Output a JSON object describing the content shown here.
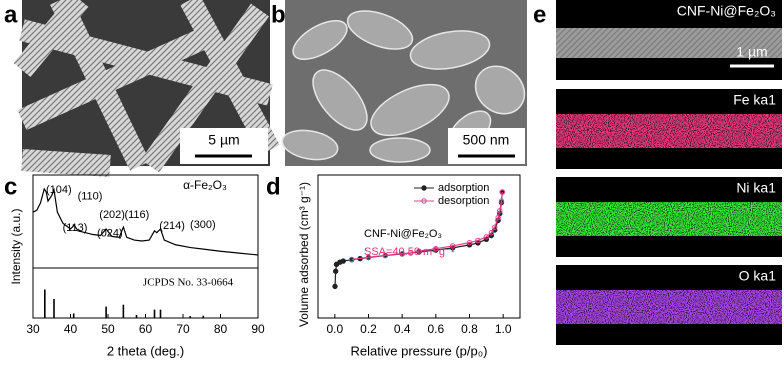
{
  "panels": {
    "a": {
      "letter": "a",
      "scale_bar": "5 µm"
    },
    "b": {
      "letter": "b",
      "scale_bar": "500 nm"
    },
    "c": {
      "letter": "c"
    },
    "d": {
      "letter": "d"
    },
    "e": {
      "letter": "e",
      "maps": [
        {
          "label": "CNF-Ni@Fe₂O₃",
          "scale_bar": "1 µm",
          "color": "#9a9a9a"
        },
        {
          "label": "Fe ka1",
          "color": "#f03c82"
        },
        {
          "label": "Ni ka1",
          "color": "#3cf03c"
        },
        {
          "label": "O ka1",
          "color": "#b048f0"
        }
      ]
    }
  },
  "chart_data": [
    {
      "type": "xrd",
      "xlabel": "2 theta (deg.)",
      "ylabel": "Intensity (a.u.)",
      "phase_label": "α-Fe₂O₃",
      "xlim": [
        30,
        90
      ],
      "xticks": [
        30,
        40,
        50,
        60,
        70,
        80,
        90
      ],
      "ylim": [
        0,
        100
      ],
      "color": "#000000",
      "x": [
        30,
        31,
        32,
        33,
        33.5,
        34,
        35,
        35.6,
        36.5,
        38,
        40,
        41,
        42,
        44,
        46,
        48,
        49.5,
        51,
        53,
        54.1,
        55,
        57,
        59,
        61,
        62.4,
        63,
        64,
        65,
        68,
        72,
        76,
        80,
        85,
        90
      ],
      "values": [
        60,
        62,
        70,
        85,
        82,
        72,
        78,
        84,
        60,
        48,
        42,
        46,
        40,
        38,
        36,
        35,
        42,
        34,
        33,
        44,
        33,
        30,
        29,
        30,
        40,
        38,
        42,
        30,
        25,
        22,
        20,
        18,
        16,
        14
      ],
      "annotations": [
        {
          "text": "(104)",
          "x": 36.9,
          "y": 84
        },
        {
          "text": "(110)",
          "x": 45.2,
          "y": 77
        },
        {
          "text": "(113)",
          "x": 41.2,
          "y": 43
        },
        {
          "text": "(202)",
          "x": 51.1,
          "y": 57
        },
        {
          "text": "(024)",
          "x": 50.5,
          "y": 37
        },
        {
          "text": "(116)",
          "x": 57.7,
          "y": 57
        },
        {
          "text": "(214)",
          "x": 67.1,
          "y": 45
        },
        {
          "text": "(300)",
          "x": 75.3,
          "y": 46
        }
      ],
      "reference": {
        "label": "JCPDS No. 33-0664",
        "ylim": [
          0,
          100
        ],
        "x": [
          33.15,
          35.6,
          40.85,
          49.5,
          54.1,
          57.6,
          62.4,
          64.0,
          71.9,
          75.4
        ],
        "values": [
          75,
          50,
          12,
          30,
          35,
          8,
          22,
          22,
          5,
          6
        ]
      }
    },
    {
      "type": "isotherm",
      "xlabel": "Relative pressure (p/p₀)",
      "ylabel": "Volume adsorbed (cm³ g⁻¹)",
      "sample_label": "CNF-Ni@Fe₂O₃",
      "ssa_label": "SSA=40.59 m² g⁻¹",
      "ssa_color": "#e0307a",
      "xlim": [
        -0.1,
        1.1
      ],
      "xticks": [
        {
          "value": 0,
          "label": "0.0"
        },
        0.2,
        0.4,
        0.6,
        0.8,
        {
          "value": 1,
          "label": "1.0"
        }
      ],
      "ylim": [
        -11,
        41
      ],
      "series": [
        {
          "name": "adsorption",
          "color": "#222222",
          "x": [
            0.001,
            0.005,
            0.01,
            0.03,
            0.05,
            0.1,
            0.15,
            0.2,
            0.3,
            0.4,
            0.5,
            0.6,
            0.7,
            0.8,
            0.85,
            0.9,
            0.93,
            0.95,
            0.97,
            0.98,
            0.99,
            0.995
          ],
          "values": [
            0.5,
            6,
            8.5,
            9.3,
            9.7,
            10.2,
            10.6,
            11,
            11.7,
            12.3,
            13,
            13.7,
            14.5,
            15.6,
            16.3,
            17.6,
            19,
            21,
            24.5,
            27,
            31,
            34.8
          ]
        },
        {
          "name": "desorption",
          "color": "#e0408a",
          "x": [
            0.995,
            0.99,
            0.98,
            0.97,
            0.95,
            0.93,
            0.9,
            0.85,
            0.8,
            0.7,
            0.6,
            0.5,
            0.45,
            0.4,
            0.3,
            0.2,
            0.1
          ],
          "values": [
            34.8,
            31.5,
            28,
            25.5,
            22,
            20,
            18.5,
            17.2,
            16.4,
            15.2,
            14.2,
            13.3,
            12.6,
            12.4,
            11.8,
            11.1,
            10.3
          ]
        }
      ]
    }
  ]
}
